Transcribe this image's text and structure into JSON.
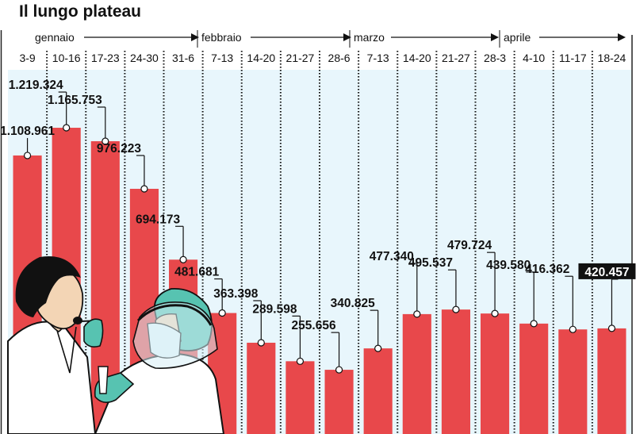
{
  "chart_data": {
    "type": "bar",
    "title": "Il lungo plateau",
    "months": [
      "gennaio",
      "febbraio",
      "marzo",
      "aprile"
    ],
    "categories": [
      "3-9",
      "10-16",
      "17-23",
      "24-30",
      "31-6",
      "7-13",
      "14-20",
      "21-27",
      "28-6",
      "7-13",
      "14-20",
      "21-27",
      "28-3",
      "4-10",
      "11-17",
      "18-24"
    ],
    "values": [
      1108961,
      1219324,
      1165753,
      976223,
      694173,
      481681,
      363398,
      289598,
      255656,
      340825,
      477340,
      495537,
      479724,
      439580,
      416362,
      420457
    ],
    "value_labels": [
      "1.108.961",
      "1.219.324",
      "1.165.753",
      "976.223",
      "694.173",
      "481.681",
      "363.398",
      "289.598",
      "255.656",
      "340.825",
      "477.340",
      "495.537",
      "479.724",
      "439.580",
      "416.362",
      "420.457"
    ],
    "highlight_index": 15,
    "ylim": [
      0,
      1450000
    ],
    "bar_color": "#e8484b",
    "background_color": "#e8f6fc",
    "highlight_color": "#111111",
    "xlabel": "",
    "ylabel": ""
  }
}
